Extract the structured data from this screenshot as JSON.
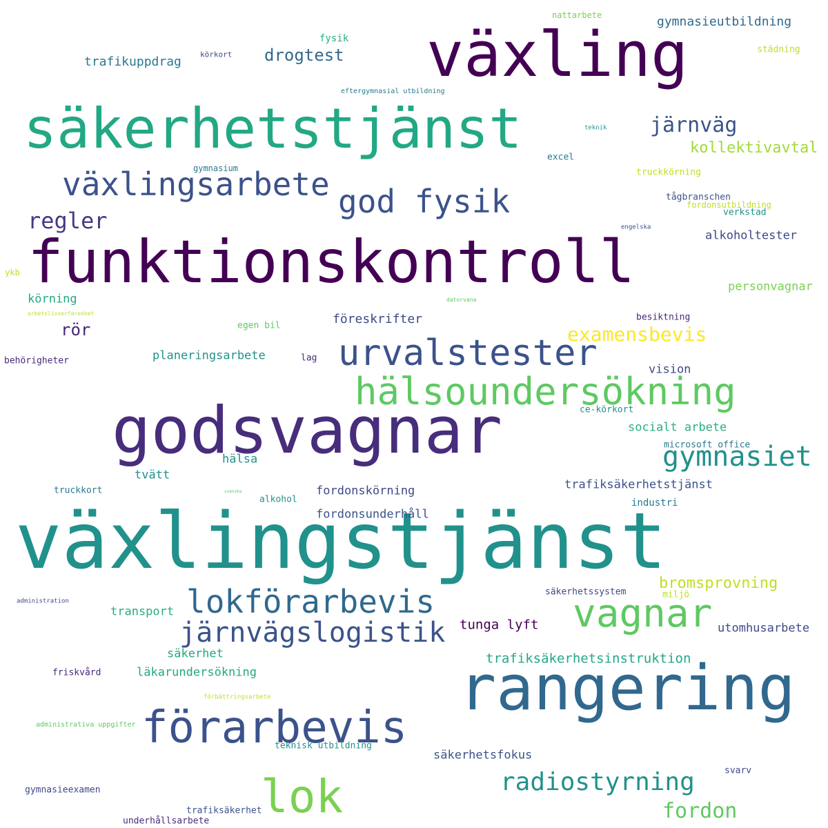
{
  "words": [
    {
      "text": "växling",
      "color": "#440154"
    },
    {
      "text": "säkerhetstjänst",
      "color": "#22a884"
    },
    {
      "text": "funktionskontroll",
      "color": "#440154"
    },
    {
      "text": "växlingsarbete",
      "color": "#3b528b"
    },
    {
      "text": "god fysik",
      "color": "#3b528b"
    },
    {
      "text": "godsvagnar",
      "color": "#472d7b"
    },
    {
      "text": "urvalstester",
      "color": "#3b528b"
    },
    {
      "text": "hälsoundersökning",
      "color": "#5ec962"
    },
    {
      "text": "växlingstjänst",
      "color": "#21918c"
    },
    {
      "text": "rangering",
      "color": "#31688e"
    },
    {
      "text": "förarbevis",
      "color": "#3b528b"
    },
    {
      "text": "lokförarbevis",
      "color": "#31688e"
    },
    {
      "text": "järnvägslogistik",
      "color": "#3b528b"
    },
    {
      "text": "vagnar",
      "color": "#5ec962"
    },
    {
      "text": "lok",
      "color": "#7ad151"
    },
    {
      "text": "gymnasiet",
      "color": "#21918c"
    },
    {
      "text": "radiostyrning",
      "color": "#21918c"
    },
    {
      "text": "fordon",
      "color": "#5ec962"
    },
    {
      "text": "järnväg",
      "color": "#3b528b"
    },
    {
      "text": "kollektivavtal",
      "color": "#a0da39"
    },
    {
      "text": "regler",
      "color": "#443983"
    },
    {
      "text": "drogtest",
      "color": "#31688e"
    },
    {
      "text": "examensbevis",
      "color": "#fde725"
    },
    {
      "text": "rör",
      "color": "#482878"
    },
    {
      "text": "trafikuppdrag",
      "color": "#2a788e"
    },
    {
      "text": "gymnasieutbildning",
      "color": "#31688e"
    },
    {
      "text": "nattarbete",
      "color": "#7ad151"
    },
    {
      "text": "fysik",
      "color": "#29af7f"
    },
    {
      "text": "körkort",
      "color": "#3e4989"
    },
    {
      "text": "städning",
      "color": "#bddf26"
    },
    {
      "text": "eftergymnasial utbildning",
      "color": "#2a788e"
    },
    {
      "text": "teknik",
      "color": "#21918c"
    },
    {
      "text": "excel",
      "color": "#2a788e"
    },
    {
      "text": "gymnasium",
      "color": "#2a788e"
    },
    {
      "text": "truckkörning",
      "color": "#bddf26"
    },
    {
      "text": "tågbranschen",
      "color": "#3b528b"
    },
    {
      "text": "fordonsutbildning",
      "color": "#bddf26"
    },
    {
      "text": "verkstad",
      "color": "#21918c"
    },
    {
      "text": "engelska",
      "color": "#3e4989"
    },
    {
      "text": "alkoholtester",
      "color": "#3e4989"
    },
    {
      "text": "ykb",
      "color": "#bddf26"
    },
    {
      "text": "personvagnar",
      "color": "#7ad151"
    },
    {
      "text": "körning",
      "color": "#22a884"
    },
    {
      "text": "datorvana",
      "color": "#5ec962"
    },
    {
      "text": "arbetslivserfarenhet",
      "color": "#bddf26"
    },
    {
      "text": "föreskrifter",
      "color": "#3e4989"
    },
    {
      "text": "egen bil",
      "color": "#5ec962"
    },
    {
      "text": "besiktning",
      "color": "#482878"
    },
    {
      "text": "behörigheter",
      "color": "#482878"
    },
    {
      "text": "planeringsarbete",
      "color": "#21918c"
    },
    {
      "text": "lag",
      "color": "#472d7b"
    },
    {
      "text": "vision",
      "color": "#3e4989"
    },
    {
      "text": "ce-körkort",
      "color": "#21918c"
    },
    {
      "text": "socialt arbete",
      "color": "#29af7f"
    },
    {
      "text": "microsoft office",
      "color": "#2a788e"
    },
    {
      "text": "hälsa",
      "color": "#21918c"
    },
    {
      "text": "tvätt",
      "color": "#21918c"
    },
    {
      "text": "truckkort",
      "color": "#2a788e"
    },
    {
      "text": "svenska",
      "color": "#5ec962"
    },
    {
      "text": "alkohol",
      "color": "#21918c"
    },
    {
      "text": "fordonskörning",
      "color": "#3e4989"
    },
    {
      "text": "trafiksäkerhetstjänst",
      "color": "#3b528b"
    },
    {
      "text": "industri",
      "color": "#2a788e"
    },
    {
      "text": "fordonsunderhåll",
      "color": "#3b528b"
    },
    {
      "text": "bromsprovning",
      "color": "#bddf26"
    },
    {
      "text": "säkerhetssystem",
      "color": "#3e4989"
    },
    {
      "text": "miljö",
      "color": "#bddf26"
    },
    {
      "text": "administration",
      "color": "#3e4989"
    },
    {
      "text": "transport",
      "color": "#29af7f"
    },
    {
      "text": "tunga lyft",
      "color": "#440154"
    },
    {
      "text": "utomhusarbete",
      "color": "#3e4989"
    },
    {
      "text": "säkerhet",
      "color": "#22a884"
    },
    {
      "text": "trafiksäkerhetsinstruktion",
      "color": "#22a884"
    },
    {
      "text": "friskvård",
      "color": "#482878"
    },
    {
      "text": "läkarundersökning",
      "color": "#22a884"
    },
    {
      "text": "förbättringsarbete",
      "color": "#bddf26"
    },
    {
      "text": "administrativa uppgifter",
      "color": "#5ec962"
    },
    {
      "text": "teknisk utbildning",
      "color": "#21918c"
    },
    {
      "text": "säkerhetsfokus",
      "color": "#3b528b"
    },
    {
      "text": "svarv",
      "color": "#3e4989"
    },
    {
      "text": "gymnasieexamen",
      "color": "#3e4989"
    },
    {
      "text": "trafiksäkerhet",
      "color": "#3b528b"
    },
    {
      "text": "underhållsarbete",
      "color": "#472d7b"
    }
  ]
}
